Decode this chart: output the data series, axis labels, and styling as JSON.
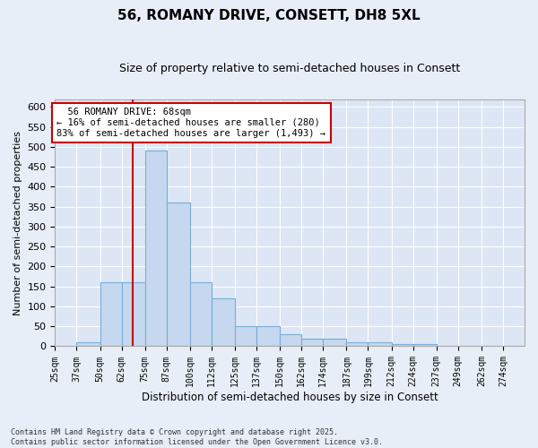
{
  "title": "56, ROMANY DRIVE, CONSETT, DH8 5XL",
  "subtitle": "Size of property relative to semi-detached houses in Consett",
  "xlabel": "Distribution of semi-detached houses by size in Consett",
  "ylabel": "Number of semi-detached properties",
  "property_size": 68,
  "property_label": "56 ROMANY DRIVE: 68sqm",
  "smaller_pct": 16,
  "smaller_count": 280,
  "larger_pct": 83,
  "larger_count": 1493,
  "bin_labels": [
    "25sqm",
    "37sqm",
    "50sqm",
    "62sqm",
    "75sqm",
    "87sqm",
    "100sqm",
    "112sqm",
    "125sqm",
    "137sqm",
    "150sqm",
    "162sqm",
    "174sqm",
    "187sqm",
    "199sqm",
    "212sqm",
    "224sqm",
    "237sqm",
    "249sqm",
    "262sqm",
    "274sqm"
  ],
  "bar_heights": [
    2,
    10,
    160,
    160,
    490,
    360,
    160,
    120,
    50,
    50,
    30,
    18,
    18,
    10,
    10,
    5,
    5,
    2,
    2,
    0,
    2
  ],
  "bin_edges": [
    25,
    37,
    50,
    62,
    75,
    87,
    100,
    112,
    125,
    137,
    150,
    162,
    174,
    187,
    199,
    212,
    224,
    237,
    249,
    262,
    274,
    286
  ],
  "bar_color": "#c5d8ef",
  "bar_edge_color": "#7badd4",
  "vline_color": "#cc0000",
  "annotation_box_color": "#cc0000",
  "background_color": "#e8eef7",
  "plot_bg_color": "#dce6f5",
  "grid_color": "#ffffff",
  "footer_text": "Contains HM Land Registry data © Crown copyright and database right 2025.\nContains public sector information licensed under the Open Government Licence v3.0.",
  "ylim": [
    0,
    620
  ],
  "yticks": [
    0,
    50,
    100,
    150,
    200,
    250,
    300,
    350,
    400,
    450,
    500,
    550,
    600
  ]
}
